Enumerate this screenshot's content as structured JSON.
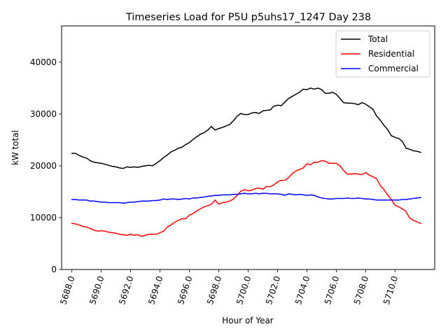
{
  "chart_data": {
    "type": "line",
    "title": "Timeseries Load for P5U p5uhs17_1247  Day 238",
    "xlabel": "Hour of Year",
    "ylabel": "kW total",
    "xlim": [
      5687.3,
      5712.7
    ],
    "ylim": [
      0,
      47000
    ],
    "xticks": [
      5688,
      5690,
      5692,
      5694,
      5696,
      5698,
      5700,
      5702,
      5704,
      5706,
      5708,
      5710
    ],
    "xtick_labels": [
      "5688.0",
      "5690.0",
      "5692.0",
      "5694.0",
      "5696.0",
      "5698.0",
      "5700.0",
      "5702.0",
      "5704.0",
      "5706.0",
      "5708.0",
      "5710.0"
    ],
    "yticks": [
      0,
      10000,
      20000,
      30000,
      40000
    ],
    "ytick_labels": [
      "0",
      "10000",
      "20000",
      "30000",
      "40000"
    ],
    "legend_position": "top-right",
    "x": [
      5688.0,
      5688.25,
      5688.5,
      5688.75,
      5689.0,
      5689.25,
      5689.5,
      5689.75,
      5690.0,
      5690.25,
      5690.5,
      5690.75,
      5691.0,
      5691.25,
      5691.5,
      5691.75,
      5692.0,
      5692.25,
      5692.5,
      5692.75,
      5693.0,
      5693.25,
      5693.5,
      5693.75,
      5694.0,
      5694.25,
      5694.5,
      5694.75,
      5695.0,
      5695.25,
      5695.5,
      5695.75,
      5696.0,
      5696.25,
      5696.5,
      5696.75,
      5697.0,
      5697.25,
      5697.5,
      5697.75,
      5698.0,
      5698.25,
      5698.5,
      5698.75,
      5699.0,
      5699.25,
      5699.5,
      5699.75,
      5700.0,
      5700.25,
      5700.5,
      5700.75,
      5701.0,
      5701.25,
      5701.5,
      5701.75,
      5702.0,
      5702.25,
      5702.5,
      5702.75,
      5703.0,
      5703.25,
      5703.5,
      5703.75,
      5704.0,
      5704.25,
      5704.5,
      5704.75,
      5705.0,
      5705.25,
      5705.5,
      5705.75,
      5706.0,
      5706.25,
      5706.5,
      5706.75,
      5707.0,
      5707.25,
      5707.5,
      5707.75,
      5708.0,
      5708.25,
      5708.5,
      5708.75,
      5709.0,
      5709.25,
      5709.5,
      5709.75,
      5710.0,
      5710.25,
      5710.5,
      5710.75,
      5711.0,
      5711.25,
      5711.5,
      5711.75
    ],
    "series": [
      {
        "name": "Total",
        "color": "#000000",
        "values": [
          22400,
          22400,
          22000,
          21700,
          21500,
          21000,
          20700,
          20600,
          20500,
          20300,
          20100,
          19900,
          19800,
          19600,
          19500,
          19800,
          19700,
          19800,
          19700,
          19900,
          20000,
          20100,
          20000,
          20500,
          21000,
          21600,
          22100,
          22700,
          23000,
          23400,
          23600,
          24100,
          24500,
          25100,
          25600,
          26100,
          26400,
          26900,
          27600,
          26900,
          27200,
          27400,
          27700,
          28000,
          28700,
          29600,
          30100,
          29900,
          29900,
          30200,
          30300,
          30100,
          30600,
          30700,
          30800,
          31500,
          31700,
          31600,
          32300,
          33000,
          33400,
          33800,
          34200,
          34800,
          34700,
          35000,
          34800,
          35000,
          34700,
          34000,
          34000,
          34200,
          33800,
          33000,
          32200,
          32100,
          32100,
          32000,
          31800,
          32200,
          31900,
          31400,
          30900,
          29600,
          28800,
          27800,
          27000,
          25800,
          25500,
          25300,
          24700,
          23400,
          23200,
          22900,
          22800,
          22600
        ]
      },
      {
        "name": "Residential",
        "color": "#ff0000",
        "values": [
          8900,
          8800,
          8600,
          8300,
          8200,
          7900,
          7600,
          7400,
          7500,
          7400,
          7200,
          7100,
          7000,
          6800,
          6700,
          6600,
          6800,
          6600,
          6700,
          6400,
          6600,
          6800,
          6800,
          6800,
          7100,
          7400,
          8200,
          8600,
          9100,
          9500,
          9800,
          9800,
          10500,
          10800,
          11300,
          11700,
          12100,
          12300,
          12600,
          13400,
          12600,
          12900,
          13000,
          13200,
          13600,
          14300,
          15100,
          15400,
          15200,
          15300,
          15600,
          15700,
          15500,
          16000,
          16000,
          16300,
          16900,
          17200,
          17200,
          17700,
          18500,
          19000,
          19300,
          19600,
          20400,
          20200,
          20700,
          20700,
          21000,
          20900,
          20500,
          20500,
          20500,
          20000,
          19100,
          18400,
          18400,
          18500,
          18400,
          18300,
          18700,
          18200,
          17900,
          17500,
          16200,
          15400,
          14400,
          13500,
          12400,
          12100,
          11700,
          11200,
          9900,
          9500,
          9200,
          8900
        ]
      },
      {
        "name": "Commercial",
        "color": "#0000ff",
        "values": [
          13500,
          13500,
          13400,
          13400,
          13400,
          13200,
          13200,
          13100,
          13000,
          13000,
          12900,
          12900,
          12900,
          12900,
          12800,
          12900,
          13000,
          13000,
          13100,
          13200,
          13200,
          13200,
          13300,
          13300,
          13400,
          13600,
          13500,
          13600,
          13600,
          13500,
          13600,
          13700,
          13600,
          13800,
          13800,
          13900,
          14000,
          14100,
          14200,
          14300,
          14300,
          14400,
          14400,
          14400,
          14500,
          14500,
          14600,
          14700,
          14600,
          14600,
          14700,
          14600,
          14700,
          14700,
          14600,
          14600,
          14600,
          14500,
          14300,
          14600,
          14500,
          14400,
          14500,
          14400,
          14300,
          14400,
          14300,
          14000,
          13800,
          13700,
          13600,
          13600,
          13700,
          13700,
          13700,
          13800,
          13700,
          13700,
          13800,
          13700,
          13600,
          13600,
          13500,
          13400,
          13400,
          13400,
          13400,
          13400,
          13400,
          13400,
          13500,
          13500,
          13600,
          13700,
          13800,
          13900
        ]
      }
    ]
  }
}
